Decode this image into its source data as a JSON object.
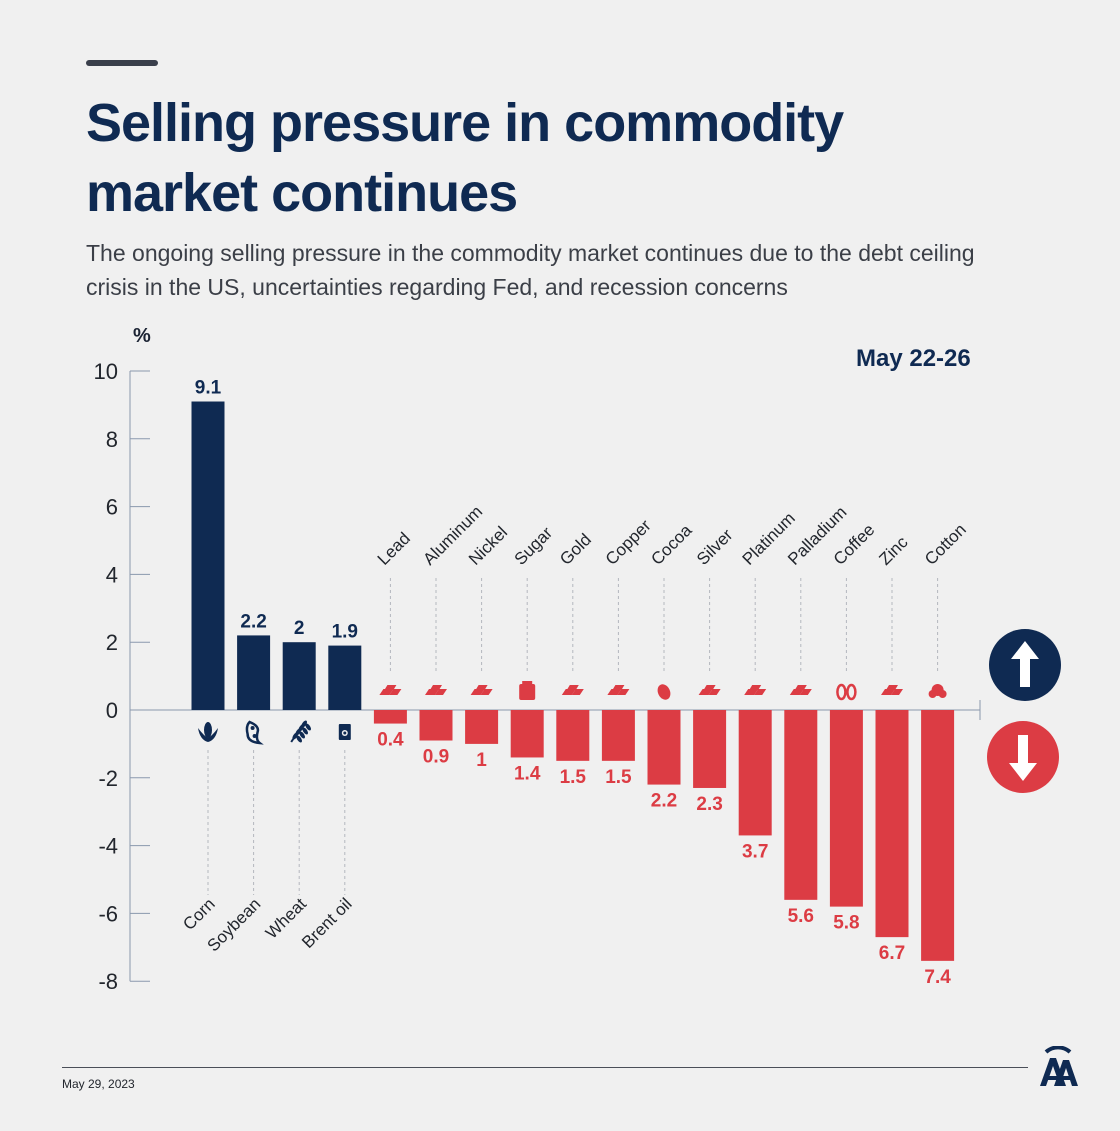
{
  "header": {
    "title": "Selling pressure in commodity market continues",
    "subtitle": "The ongoing selling pressure in the commodity market continues due to the debt ceiling crisis in the US, uncertainties regarding Fed, and recession concerns",
    "date_range": "May 22-26"
  },
  "footer": {
    "date": "May 29, 2023",
    "logo": "AA"
  },
  "colors": {
    "positive": "#0f2a52",
    "negative": "#dc3c44",
    "axis": "#8a98ad",
    "background": "#f0f0f0"
  },
  "chart_data": {
    "type": "bar",
    "ylabel": "%",
    "ylim": [
      -8,
      10
    ],
    "yticks": [
      10,
      8,
      6,
      4,
      2,
      0,
      -2,
      -4,
      -6,
      -8
    ],
    "grid": false,
    "legend": "none",
    "categories": [
      "Corn",
      "Soybean",
      "Wheat",
      "Brent oil",
      "Lead",
      "Aluminum",
      "Nickel",
      "Sugar",
      "Gold",
      "Copper",
      "Cocoa",
      "Silver",
      "Platinum",
      "Palladium",
      "Coffee",
      "Zinc",
      "Cotton"
    ],
    "values": [
      9.1,
      2.2,
      2,
      1.9,
      -0.4,
      -0.9,
      -1,
      -1.4,
      -1.5,
      -1.5,
      -2.2,
      -2.3,
      -3.7,
      -5.6,
      -5.8,
      -6.7,
      -7.4
    ],
    "labels": [
      "9.1",
      "2.2",
      "2",
      "1.9",
      "0.4",
      "0.9",
      "1",
      "1.4",
      "1.5",
      "1.5",
      "2.2",
      "2.3",
      "3.7",
      "5.6",
      "5.8",
      "6.7",
      "7.4"
    ],
    "icons": [
      "corn-icon",
      "soybean-icon",
      "wheat-icon",
      "oil-barrel-icon",
      "metal-bars-icon",
      "metal-bars-icon",
      "metal-bars-icon",
      "sugar-sack-icon",
      "metal-bars-icon",
      "metal-bars-icon",
      "cocoa-pod-icon",
      "metal-bars-icon",
      "metal-bars-icon",
      "metal-bars-icon",
      "coffee-beans-icon",
      "metal-bars-icon",
      "cotton-icon"
    ],
    "indicators": [
      "arrow-up-icon",
      "arrow-down-icon"
    ]
  }
}
